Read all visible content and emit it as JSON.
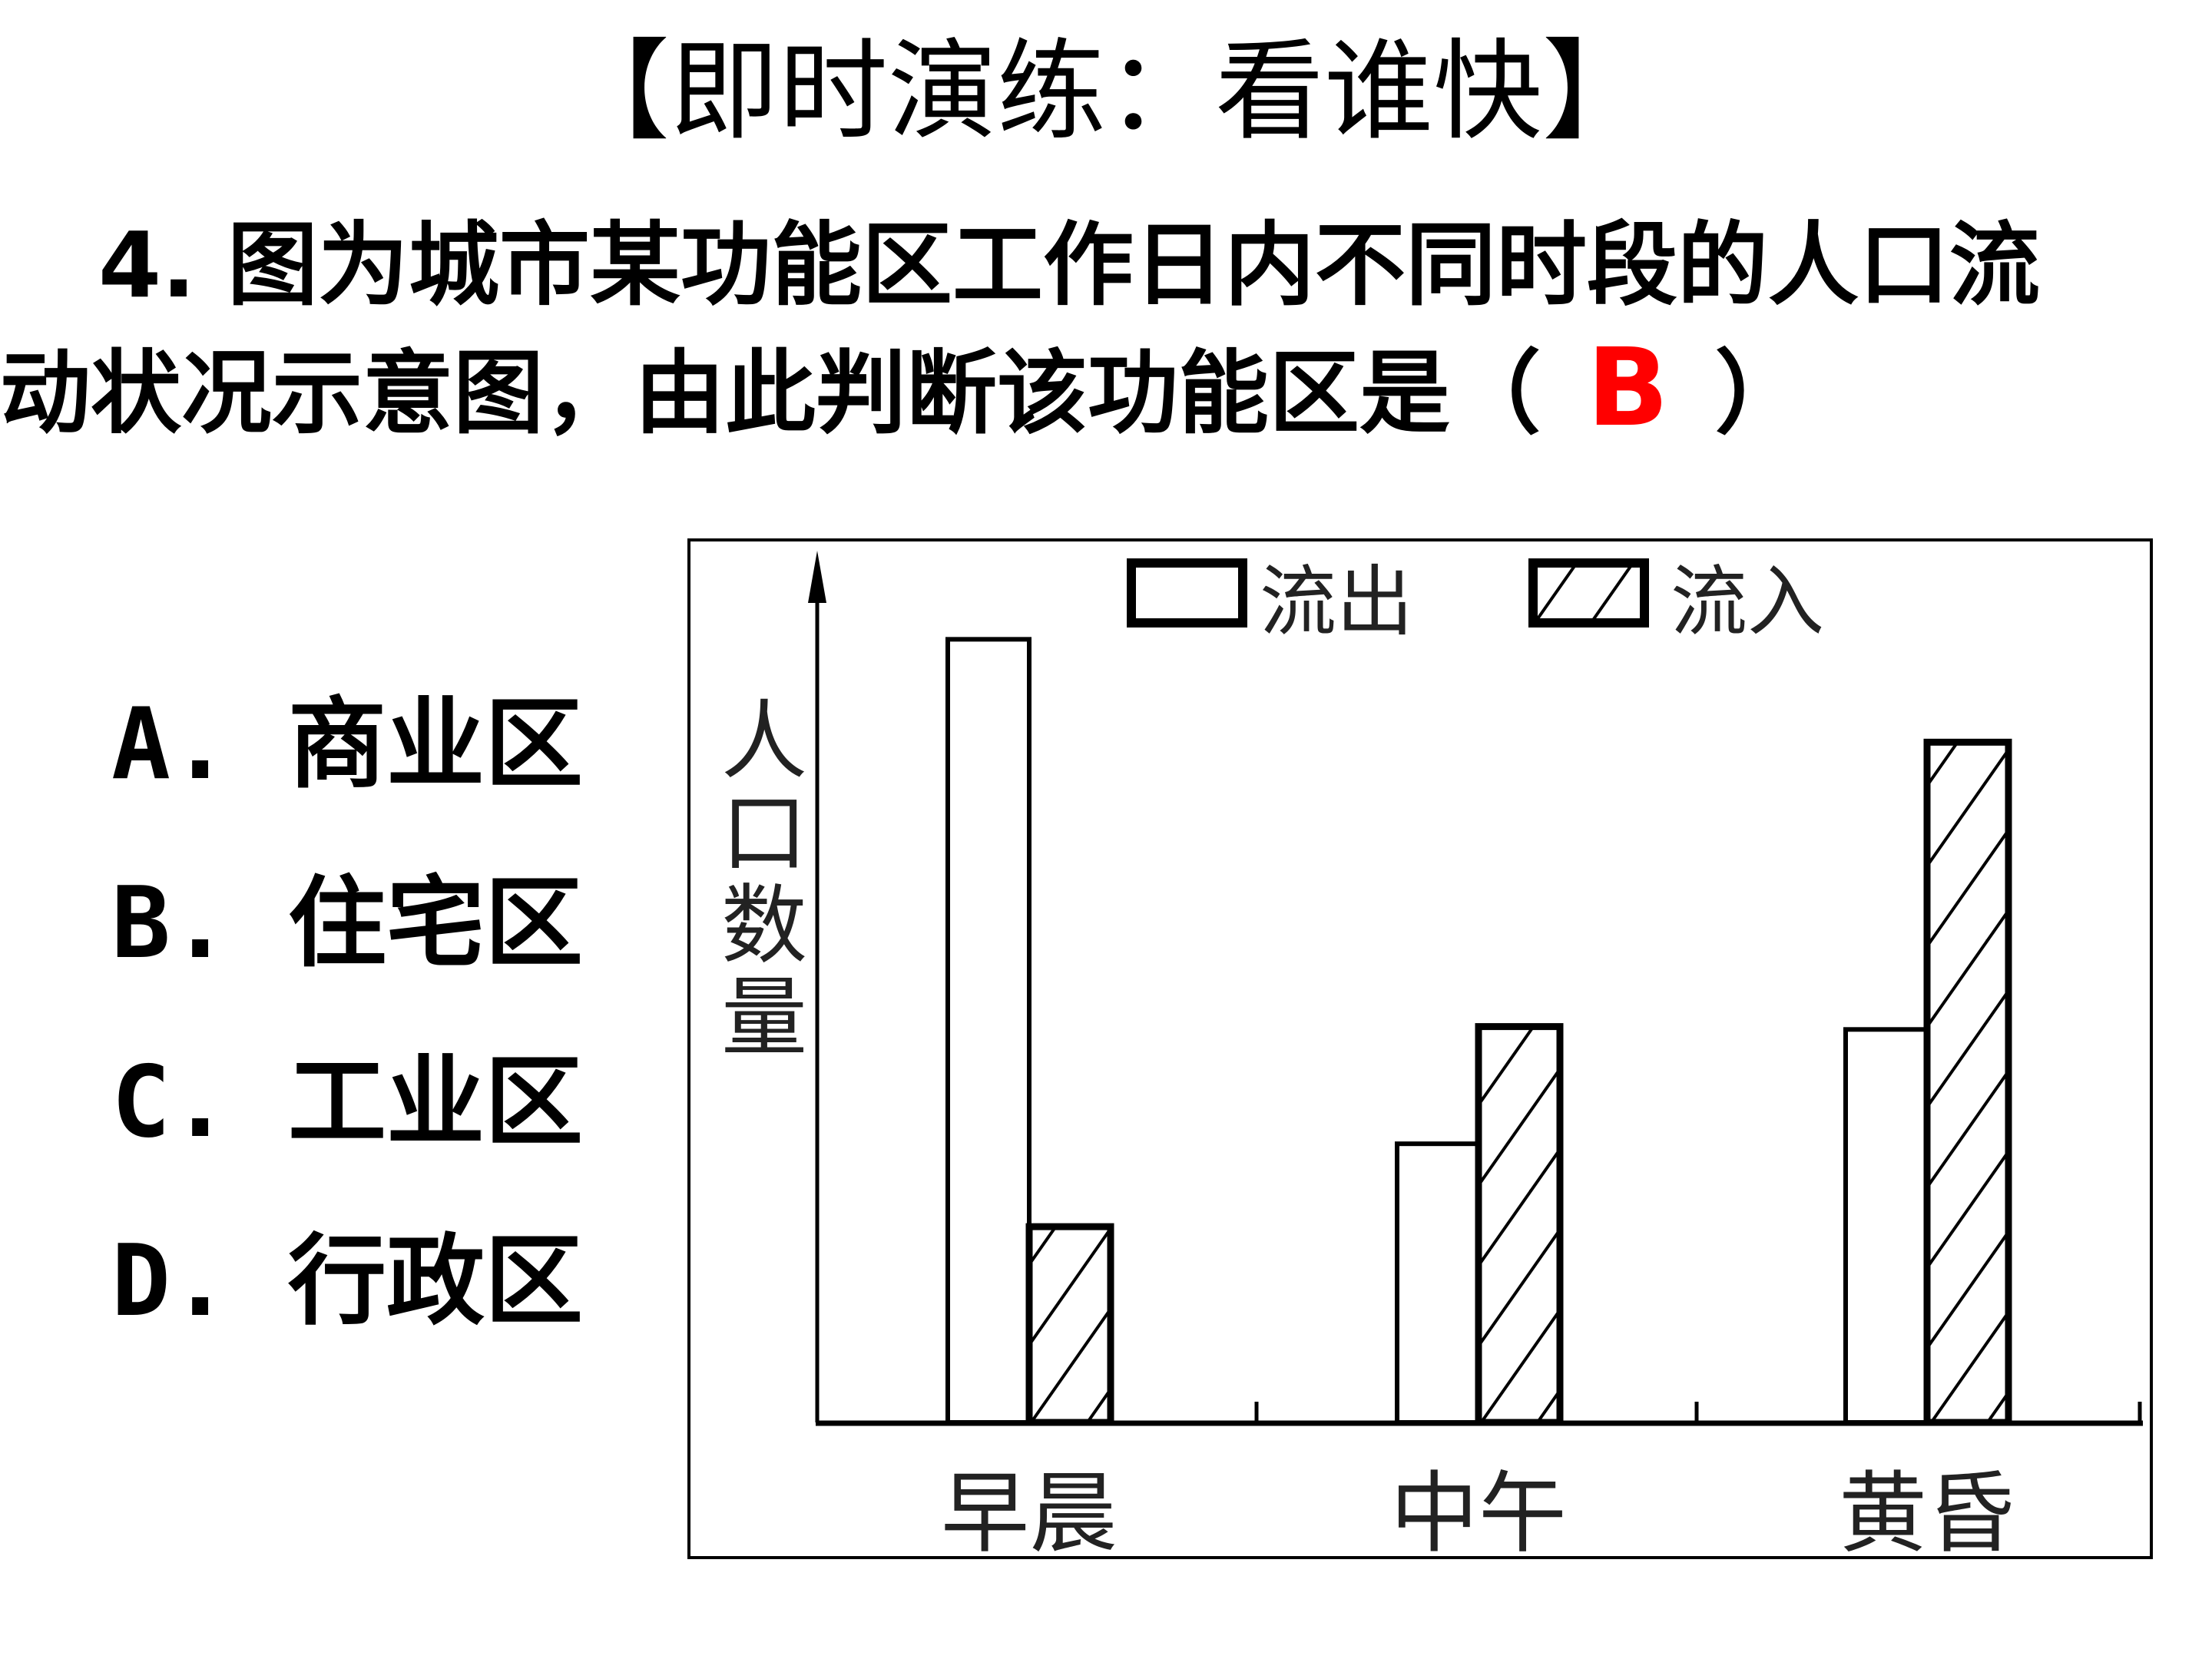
{
  "title": "【即时演练：看谁快】",
  "question": {
    "line1": "4. 图为城市某功能区工作日内不同时段的人口流",
    "line2": "动状况示意图，由此判断该功能区是（",
    "answer": "B",
    "close": "）"
  },
  "options": [
    {
      "letter": "A.",
      "text": "商业区"
    },
    {
      "letter": "B.",
      "text": "住宅区"
    },
    {
      "letter": "C.",
      "text": "工业区"
    },
    {
      "letter": "D.",
      "text": "行政区"
    }
  ],
  "chart_data": {
    "type": "bar",
    "title": "",
    "xlabel": "",
    "ylabel": "人口数量",
    "categories": [
      "早晨",
      "中午",
      "黄昏"
    ],
    "series": [
      {
        "name": "流出",
        "pattern": "empty",
        "values": [
          548,
          195,
          275
        ]
      },
      {
        "name": "流入",
        "pattern": "hatched",
        "values": [
          137,
          277,
          476
        ]
      }
    ],
    "ylim": [
      0,
      610
    ],
    "y_ticks_labeled": false,
    "grid": false,
    "legend": "top",
    "colors": {
      "bar_stroke": "#000000",
      "bar_fill": "#ffffff",
      "answer": "#ff0000"
    }
  }
}
